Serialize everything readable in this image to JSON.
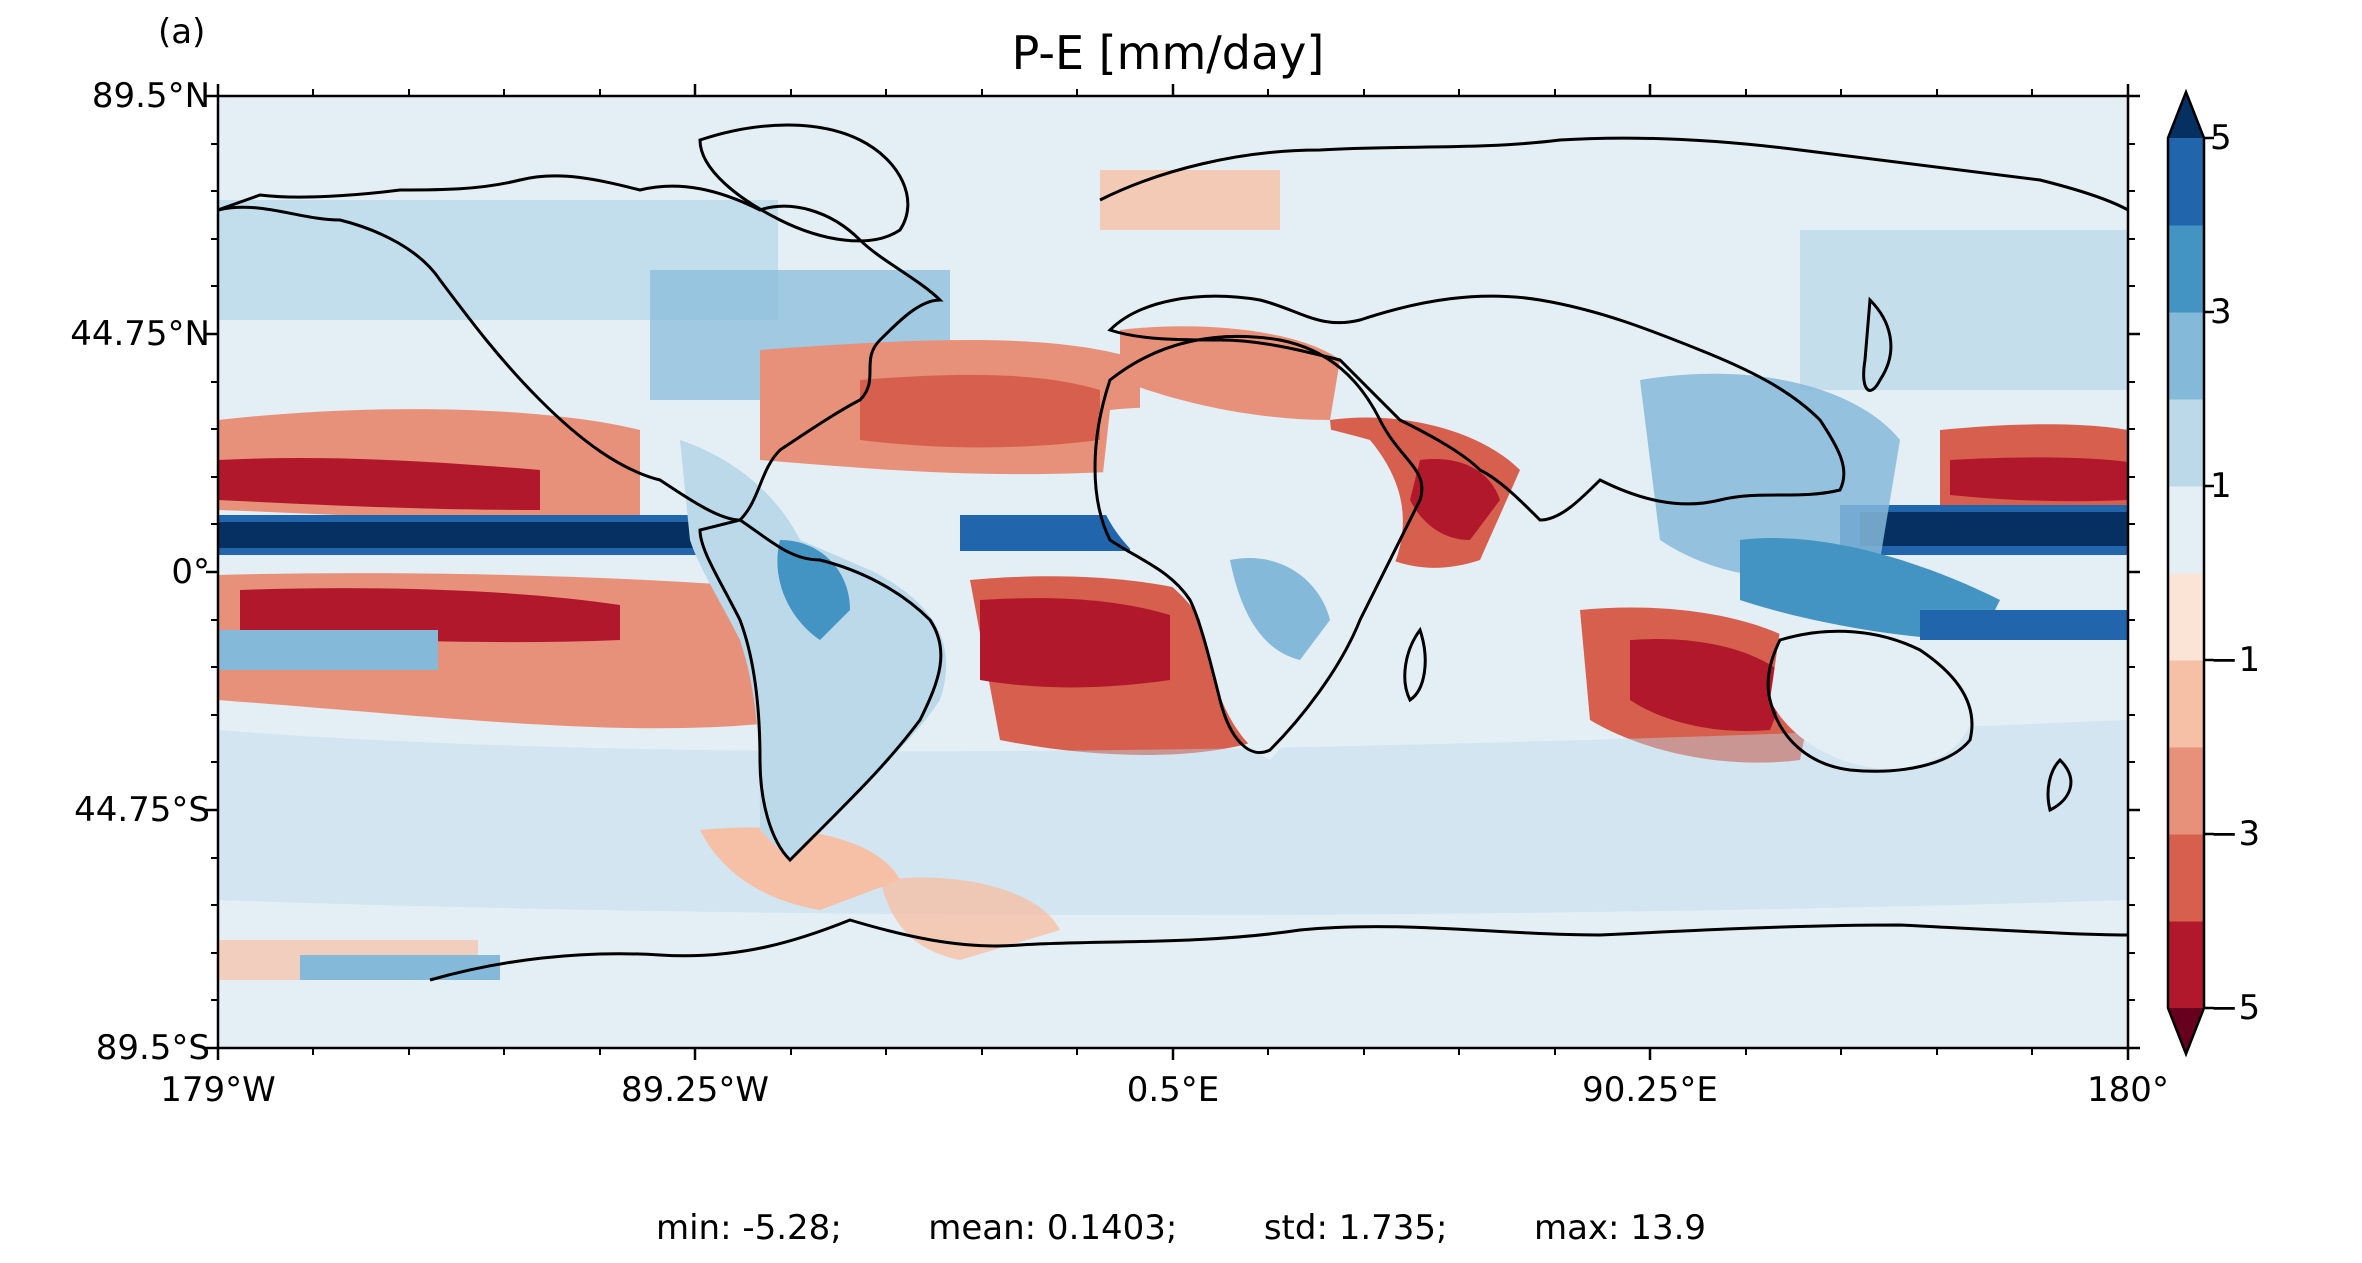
{
  "panel_label": "(a)",
  "title": "P-E [mm/day]",
  "axes": {
    "lat_ticks": [
      "89.5°N",
      "44.75°N",
      "0°",
      "44.75°S",
      "89.5°S"
    ],
    "lon_ticks": [
      "179°W",
      "89.25°W",
      "0.5°E",
      "90.25°E",
      "180°"
    ]
  },
  "colorbar": {
    "tick_labels": [
      "5",
      "3",
      "1",
      "−1",
      "−3",
      "−5"
    ],
    "levels": [
      -5,
      -4,
      -3,
      -2,
      -1,
      0,
      1,
      2,
      3,
      4,
      5
    ],
    "colors": [
      "#b2182b",
      "#d6604d",
      "#e8917a",
      "#f6c0a6",
      "#fbe3d6",
      "#e4eef5",
      "#bcd9ea",
      "#85b9d9",
      "#4393c3",
      "#2166ac"
    ],
    "extend_min_color": "#67001f",
    "extend_max_color": "#053061",
    "cmap": "RdBu"
  },
  "stats": {
    "min": "min: -5.28;",
    "mean": "mean: 0.1403;",
    "std": "std: 1.735;",
    "max": "max: 13.9"
  }
}
